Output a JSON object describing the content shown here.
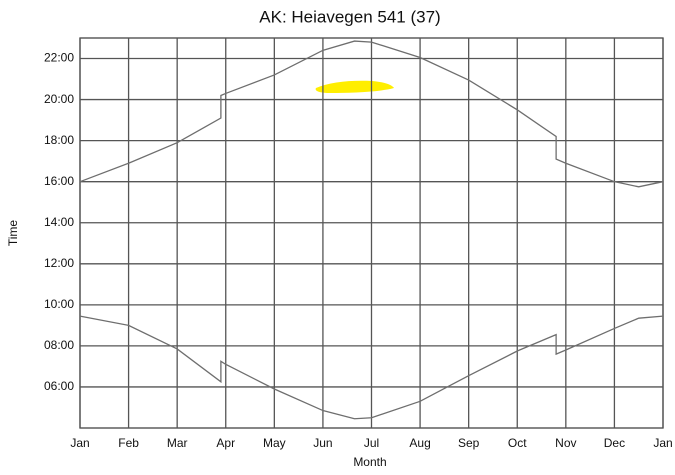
{
  "chart_data": {
    "type": "line",
    "title": "AK: Heiavegen 541 (37)",
    "x_label": "Month",
    "y_label": "Time",
    "x": [
      0,
      1,
      2,
      2.9,
      2.9,
      3,
      4,
      5,
      5.65,
      6,
      7,
      8,
      9,
      9.8,
      9.8,
      10,
      11,
      11.5,
      12
    ],
    "series": [
      {
        "color": "#6e6e6e",
        "values": [
          16.0,
          16.9,
          17.9,
          19.1,
          20.2,
          20.3,
          21.2,
          22.4,
          22.85,
          22.8,
          22.05,
          20.95,
          19.5,
          18.2,
          17.1,
          16.9,
          16.0,
          15.75,
          16.0
        ]
      },
      {
        "color": "#6e6e6e",
        "values": [
          9.45,
          9.0,
          7.85,
          6.25,
          7.25,
          7.1,
          5.9,
          4.85,
          4.45,
          4.5,
          5.3,
          6.55,
          7.75,
          8.55,
          7.6,
          7.8,
          8.85,
          9.35,
          9.45
        ]
      }
    ],
    "xlim": [
      0,
      12
    ],
    "xticks": [
      {
        "value": 0,
        "label": "Jan"
      },
      {
        "value": 1,
        "label": "Feb"
      },
      {
        "value": 2,
        "label": "Mar"
      },
      {
        "value": 3,
        "label": "Apr"
      },
      {
        "value": 4,
        "label": "May"
      },
      {
        "value": 5,
        "label": "Jun"
      },
      {
        "value": 6,
        "label": "Jul"
      },
      {
        "value": 7,
        "label": "Aug"
      },
      {
        "value": 8,
        "label": "Sep"
      },
      {
        "value": 9,
        "label": "Oct"
      },
      {
        "value": 10,
        "label": "Nov"
      },
      {
        "value": 11,
        "label": "Dec"
      },
      {
        "value": 12,
        "label": "Jan"
      }
    ],
    "ylim": [
      4,
      23
    ],
    "yticks": [
      {
        "value": 6,
        "label": "06:00"
      },
      {
        "value": 8,
        "label": "08:00"
      },
      {
        "value": 10,
        "label": "10:00"
      },
      {
        "value": 12,
        "label": "12:00"
      },
      {
        "value": 14,
        "label": "14:00"
      },
      {
        "value": 16,
        "label": "16:00"
      },
      {
        "value": 18,
        "label": "18:00"
      },
      {
        "value": 20,
        "label": "20:00"
      },
      {
        "value": 22,
        "label": "22:00"
      }
    ],
    "grid": true
  }
}
